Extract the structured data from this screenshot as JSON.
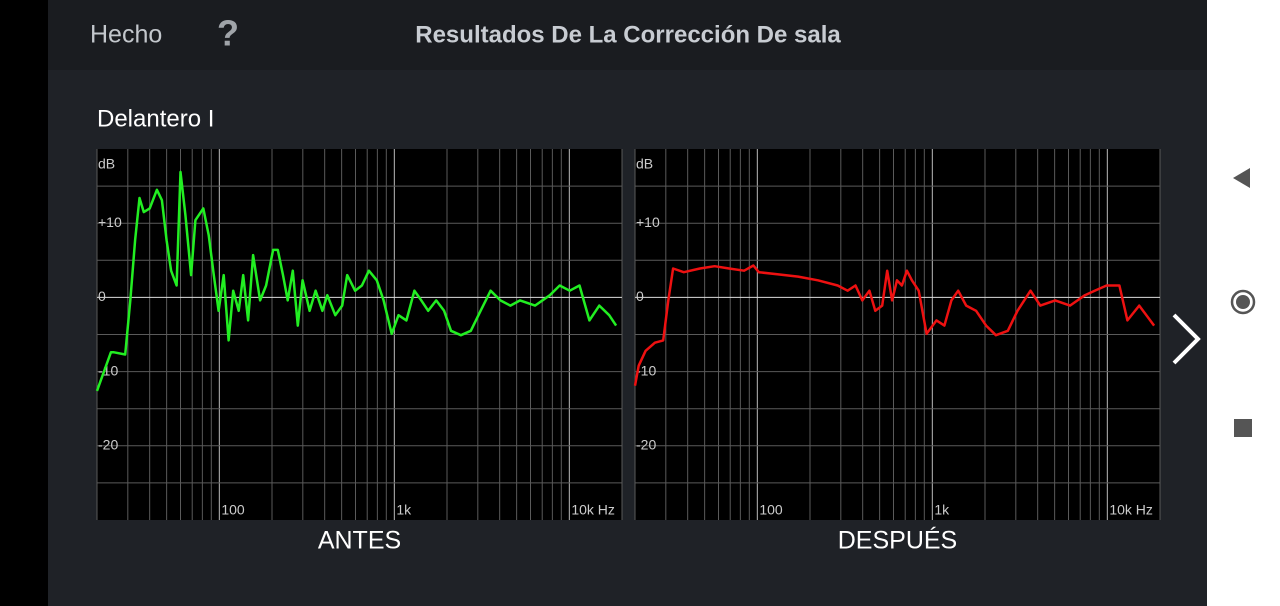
{
  "header": {
    "done": "Hecho",
    "help": "?",
    "title": "Resultados De La Corrección De sala"
  },
  "section_title": "Delantero I",
  "chart_data": [
    {
      "type": "line",
      "caption": "ANTES",
      "y_label": "dB",
      "log_x": true,
      "xlim": [
        20,
        20000
      ],
      "ylim": [
        -30,
        20
      ],
      "xticks": [
        {
          "value": 100,
          "label": "100"
        },
        {
          "value": 1000,
          "label": "1k"
        },
        {
          "value": 10000,
          "label": "10k Hz"
        }
      ],
      "yticks": [
        {
          "value": 10,
          "label": "+10"
        },
        0,
        -10,
        -20
      ],
      "xgrid": [
        20,
        30,
        40,
        50,
        60,
        70,
        80,
        90,
        100,
        200,
        300,
        400,
        500,
        600,
        700,
        800,
        900,
        1000,
        2000,
        3000,
        4000,
        5000,
        6000,
        7000,
        8000,
        9000,
        10000,
        20000
      ],
      "ygrid": [
        15,
        10,
        5,
        0,
        -5,
        -10,
        -15,
        -20,
        -25
      ],
      "series": [
        {
          "color": "#22ee22",
          "x": [
            20,
            22,
            24,
            25,
            29,
            31,
            33,
            35,
            37,
            40,
            44,
            47,
            50,
            53,
            57,
            60,
            64,
            69,
            73,
            81,
            87,
            93,
            99,
            106,
            113,
            120,
            129,
            137,
            146,
            156,
            171,
            185,
            203,
            216,
            231,
            246,
            263,
            281,
            299,
            328,
            355,
            388,
            414,
            460,
            504,
            538,
            597,
            653,
            716,
            794,
            869,
            966,
            1057,
            1172,
            1303,
            1426,
            1562,
            1734,
            1924,
            2108,
            2400,
            2735,
            3112,
            3549,
            4038,
            4604,
            5236,
            6368,
            7745,
            8814,
            10046,
            11436,
            13026,
            14827,
            16892,
            18500
          ],
          "values": [
            -12.6,
            -9.9,
            -7.4,
            -7.4,
            -7.7,
            -0.4,
            7.7,
            13.4,
            11.5,
            12,
            14.5,
            13.1,
            7.7,
            3.6,
            1.6,
            16.9,
            11.1,
            3,
            10.4,
            12,
            8.4,
            3,
            -1.8,
            3,
            -5.8,
            0.9,
            -1.8,
            3,
            -3.1,
            5.7,
            -0.4,
            1.6,
            6.4,
            6.4,
            3,
            -0.4,
            3.6,
            -3.8,
            2.3,
            -1.8,
            0.9,
            -1.8,
            0.3,
            -2.4,
            -1.1,
            3,
            0.9,
            1.6,
            3.6,
            2.3,
            -0.4,
            -4.9,
            -2.4,
            -3.1,
            0.9,
            -0.4,
            -1.8,
            -0.4,
            -1.8,
            -4.5,
            -5.1,
            -4.5,
            -1.8,
            0.9,
            -0.4,
            -1.1,
            -0.4,
            -1.1,
            0.3,
            1.6,
            0.9,
            1.6,
            -3.1,
            -1.1,
            -2.4,
            -3.8
          ]
        }
      ]
    },
    {
      "type": "line",
      "caption": "DESPUÉS",
      "y_label": "dB",
      "log_x": true,
      "xlim": [
        20,
        20000
      ],
      "ylim": [
        -30,
        20
      ],
      "xticks": [
        {
          "value": 100,
          "label": "100"
        },
        {
          "value": 1000,
          "label": "1k"
        },
        {
          "value": 10000,
          "label": "10k Hz"
        }
      ],
      "yticks": [
        {
          "value": 10,
          "label": "+10"
        },
        0,
        -10,
        -20
      ],
      "xgrid": [
        20,
        30,
        40,
        50,
        60,
        70,
        80,
        90,
        100,
        200,
        300,
        400,
        500,
        600,
        700,
        800,
        900,
        1000,
        2000,
        3000,
        4000,
        5000,
        6000,
        7000,
        8000,
        9000,
        10000,
        20000
      ],
      "ygrid": [
        15,
        10,
        5,
        0,
        -5,
        -10,
        -15,
        -20,
        -25
      ],
      "series": [
        {
          "color": "#ee1111",
          "x": [
            20,
            21,
            23,
            26,
            29,
            31,
            33,
            38,
            47,
            57,
            69,
            84,
            95,
            102,
            132,
            171,
            222,
            288,
            328,
            364,
            398,
            437,
            472,
            517,
            552,
            589,
            628,
            670,
            716,
            764,
            836,
            928,
            1057,
            1172,
            1285,
            1406,
            1562,
            1778,
            2028,
            2307,
            2698,
            3069,
            3640,
            4141,
            5035,
            6122,
            7444,
            8472,
            9908,
            11728,
            13026,
            15206,
            18500
          ],
          "values": [
            -11.9,
            -9.2,
            -7.2,
            -6.1,
            -5.8,
            -0.4,
            3.9,
            3.4,
            3.9,
            4.2,
            3.9,
            3.6,
            4.3,
            3.4,
            3.1,
            2.8,
            2.3,
            1.6,
            0.9,
            1.6,
            -0.4,
            0.9,
            -1.8,
            -1.1,
            3.6,
            -0.4,
            2.3,
            1.6,
            3.6,
            2.3,
            0.9,
            -4.9,
            -3.1,
            -3.8,
            -0.4,
            0.9,
            -1.1,
            -1.8,
            -3.8,
            -5.1,
            -4.5,
            -1.8,
            0.9,
            -1.1,
            -0.4,
            -1.1,
            0.3,
            0.9,
            1.6,
            1.6,
            -3.1,
            -1.1,
            -3.8
          ]
        }
      ]
    }
  ]
}
